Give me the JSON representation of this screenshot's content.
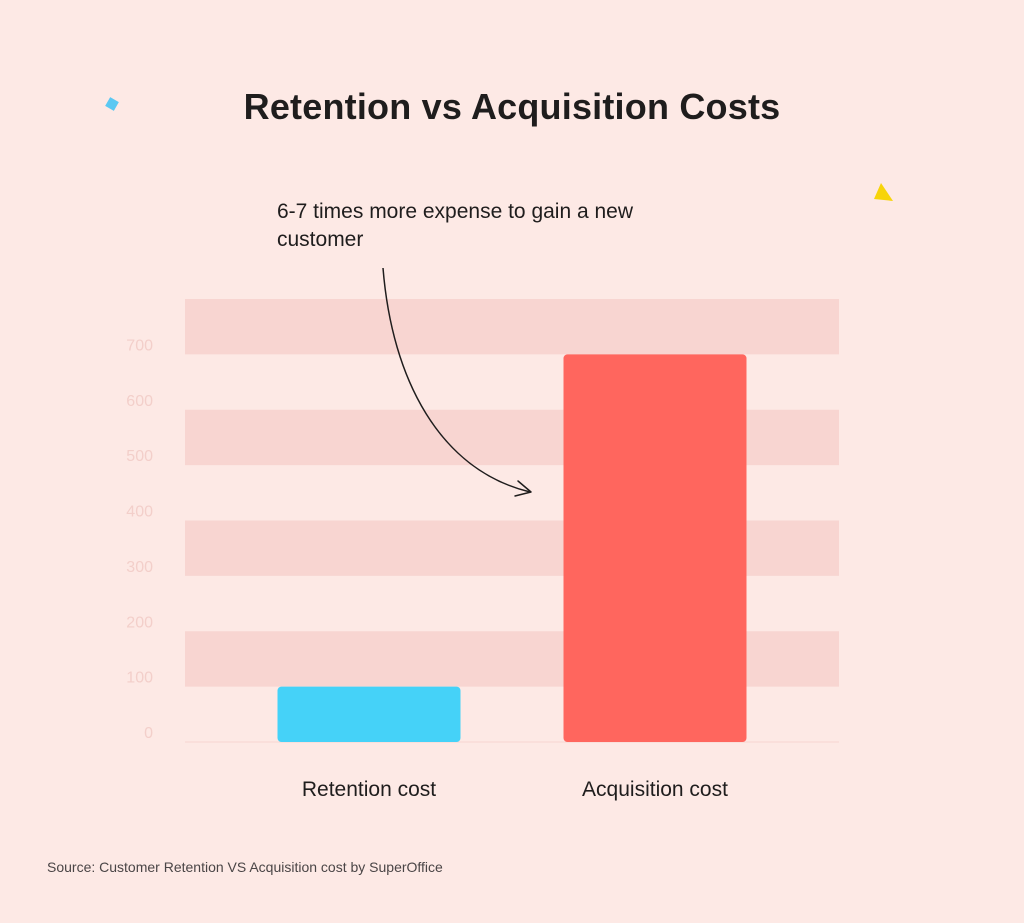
{
  "title": "Retention vs Acquisition Costs",
  "annotation": "6-7 times more expense to gain a new customer",
  "source": "Source: Customer Retention VS Acquisition cost by SuperOffice",
  "colors": {
    "background": "#fde9e5",
    "band": "#f8d5d1",
    "retention_bar": "#45d2f8",
    "acquisition_bar": "#ff665e",
    "tick_label": "#f3cfca",
    "text": "#1f1d1d",
    "deco_square": "#5bc8f2",
    "deco_triangle": "#f7d40a"
  },
  "chart_data": {
    "type": "bar",
    "title": "Retention vs Acquisition Costs",
    "categories": [
      "Retention cost",
      "Acquisition cost"
    ],
    "values": [
      100,
      700
    ],
    "xlabel": "",
    "ylabel": "",
    "ylim": [
      0,
      800
    ],
    "yticks": [
      0,
      100,
      200,
      300,
      400,
      500,
      600,
      700
    ],
    "grid": true,
    "legend": "none",
    "annotations": [
      "6-7 times more expense to gain a new customer"
    ]
  }
}
